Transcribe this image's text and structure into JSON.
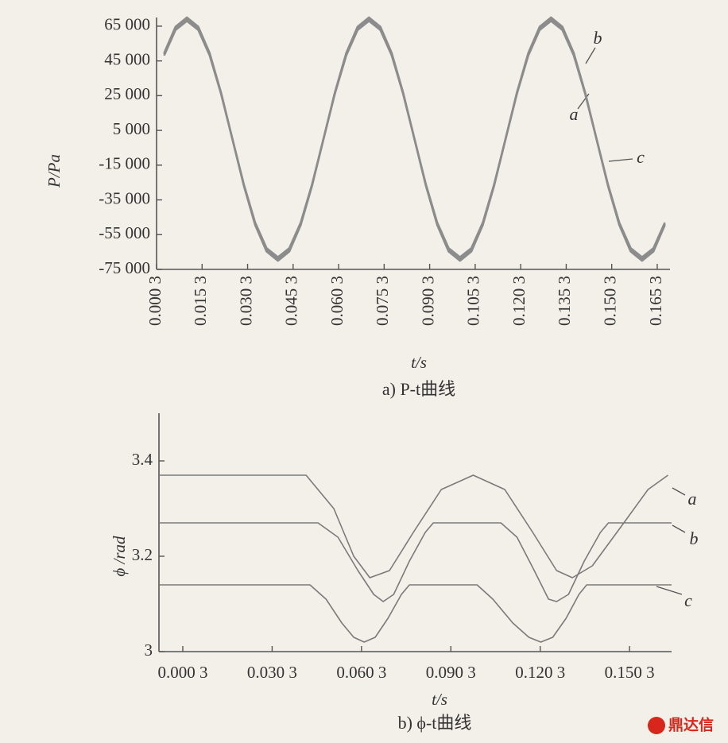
{
  "chart_data": [
    {
      "type": "line",
      "caption": "a) P-t曲线",
      "xlabel": "t/s",
      "ylabel": "P/Pa",
      "x": [
        0.0028,
        0.00655,
        0.0103,
        0.01405,
        0.0178,
        0.02155,
        0.0253,
        0.02905,
        0.0328,
        0.03655,
        0.0403,
        0.04405,
        0.0478,
        0.05155,
        0.0553,
        0.05905,
        0.0628,
        0.06655,
        0.0703,
        0.07405,
        0.0778,
        0.08155,
        0.0853,
        0.08905,
        0.0928,
        0.09655,
        0.1003,
        0.10405,
        0.1078,
        0.11155,
        0.1153,
        0.11905,
        0.1228,
        0.12655,
        0.1303,
        0.13405,
        0.1378,
        0.14155,
        0.1453,
        0.14905,
        0.1528,
        0.15655,
        0.1603,
        0.16405,
        0.1678
      ],
      "series": [
        {
          "name": "a",
          "color": "#8c8c8c",
          "values": [
            49500,
            64700,
            70000,
            64700,
            49500,
            26800,
            0,
            -26800,
            -49500,
            -64700,
            -70000,
            -64700,
            -49500,
            -26800,
            0,
            26800,
            49500,
            64700,
            70000,
            64700,
            49500,
            26800,
            0,
            -26800,
            -49500,
            -64700,
            -70000,
            -64700,
            -49500,
            -26800,
            0,
            26800,
            49500,
            64700,
            70000,
            64700,
            49500,
            26800,
            0,
            -26800,
            -49500,
            -64700,
            -70000,
            -64700,
            -49500
          ]
        },
        {
          "name": "b",
          "color": "#8c8c8c",
          "values": [
            48800,
            63800,
            69000,
            63800,
            48800,
            26400,
            0,
            -26400,
            -48800,
            -63800,
            -69000,
            -63800,
            -48800,
            -26400,
            0,
            26400,
            48800,
            63800,
            69000,
            63800,
            48800,
            26400,
            0,
            -26400,
            -48800,
            -63800,
            -69000,
            -63800,
            -48800,
            -26400,
            0,
            26400,
            48800,
            63800,
            69000,
            63800,
            48800,
            26400,
            0,
            -26400,
            -48800,
            -63800,
            -69000,
            -63800,
            -48800
          ]
        },
        {
          "name": "c",
          "color": "#8c8c8c",
          "values": [
            48100,
            62800,
            68000,
            62800,
            48100,
            26000,
            0,
            -26000,
            -48100,
            -62800,
            -68000,
            -62800,
            -48100,
            -26000,
            0,
            26000,
            48100,
            62800,
            68000,
            62800,
            48100,
            26000,
            0,
            -26000,
            -48100,
            -62800,
            -68000,
            -62800,
            -48100,
            -26000,
            0,
            26000,
            48100,
            62800,
            68000,
            62800,
            48100,
            26000,
            0,
            -26000,
            -48100,
            -62800,
            -68000,
            -62800,
            -48100
          ]
        }
      ],
      "xlim": [
        0.0003,
        0.1695
      ],
      "ylim": [
        -75000,
        70000
      ],
      "xticks": [
        {
          "value": 0.0003,
          "label": "0.000 3"
        },
        {
          "value": 0.0153,
          "label": "0.015 3"
        },
        {
          "value": 0.0303,
          "label": "0.030 3"
        },
        {
          "value": 0.0453,
          "label": "0.045 3"
        },
        {
          "value": 0.0603,
          "label": "0.060 3"
        },
        {
          "value": 0.0753,
          "label": "0.075 3"
        },
        {
          "value": 0.0903,
          "label": "0.090 3"
        },
        {
          "value": 0.1053,
          "label": "0.105 3"
        },
        {
          "value": 0.1203,
          "label": "0.120 3"
        },
        {
          "value": 0.1353,
          "label": "0.135 3"
        },
        {
          "value": 0.1503,
          "label": "0.150 3"
        },
        {
          "value": 0.1653,
          "label": "0.165 3"
        }
      ],
      "yticks": [
        {
          "value": 65000,
          "label": "65 000"
        },
        {
          "value": 45000,
          "label": "45 000"
        },
        {
          "value": 25000,
          "label": "25 000"
        },
        {
          "value": 5000,
          "label": "5 000"
        },
        {
          "value": -15000,
          "label": "-15 000"
        },
        {
          "value": -35000,
          "label": "-35 000"
        },
        {
          "value": -55000,
          "label": "-55 000"
        },
        {
          "value": -75000,
          "label": "-75 000"
        }
      ]
    },
    {
      "type": "line",
      "caption": "b) ϕ-t曲线",
      "xlabel": "t/s",
      "ylabel": "ϕ /rad",
      "series": [
        {
          "name": "a",
          "color": "#7a7a7a",
          "x": [
            -0.0077,
            0.0417,
            0.051,
            0.0577,
            0.0631,
            0.0697,
            0.0777,
            0.0871,
            0.0978,
            0.1084,
            0.1178,
            0.1258,
            0.1311,
            0.1378,
            0.1472,
            0.1565,
            0.1632
          ],
          "values": [
            3.37,
            3.37,
            3.3,
            3.2,
            3.155,
            3.17,
            3.25,
            3.34,
            3.37,
            3.34,
            3.25,
            3.17,
            3.155,
            3.18,
            3.26,
            3.34,
            3.37
          ]
        },
        {
          "name": "b",
          "color": "#7a7a7a",
          "x": [
            -0.0077,
            0.0457,
            0.0524,
            0.0591,
            0.0644,
            0.0676,
            0.0711,
            0.0764,
            0.0817,
            0.0844,
            0.1071,
            0.1125,
            0.1183,
            0.1231,
            0.1258,
            0.1298,
            0.1351,
            0.1405,
            0.1432,
            0.1644
          ],
          "values": [
            3.27,
            3.27,
            3.24,
            3.17,
            3.12,
            3.105,
            3.12,
            3.19,
            3.25,
            3.27,
            3.27,
            3.24,
            3.17,
            3.11,
            3.105,
            3.12,
            3.19,
            3.25,
            3.27,
            3.27
          ]
        },
        {
          "name": "c",
          "color": "#7a7a7a",
          "x": [
            -0.0077,
            0.043,
            0.0484,
            0.0537,
            0.0577,
            0.0612,
            0.0649,
            0.0692,
            0.0737,
            0.0764,
            0.0991,
            0.1044,
            0.1111,
            0.1165,
            0.1205,
            0.1245,
            0.129,
            0.1333,
            0.1359,
            0.1644
          ],
          "values": [
            3.14,
            3.14,
            3.11,
            3.06,
            3.03,
            3.02,
            3.03,
            3.07,
            3.12,
            3.14,
            3.14,
            3.11,
            3.06,
            3.03,
            3.02,
            3.03,
            3.07,
            3.12,
            3.14,
            3.14
          ]
        }
      ],
      "xlim": [
        -0.0077,
        0.1644
      ],
      "ylim": [
        3,
        3.5
      ],
      "xticks": [
        {
          "value": 0.0003,
          "label": "0.000 3"
        },
        {
          "value": 0.0303,
          "label": "0.030 3"
        },
        {
          "value": 0.0603,
          "label": "0.060 3"
        },
        {
          "value": 0.0903,
          "label": "0.090 3"
        },
        {
          "value": 0.1203,
          "label": "0.120 3"
        },
        {
          "value": 0.1503,
          "label": "0.150 3"
        }
      ],
      "yticks": [
        3,
        3.2,
        3.4
      ]
    }
  ],
  "watermark": "鼎达信"
}
